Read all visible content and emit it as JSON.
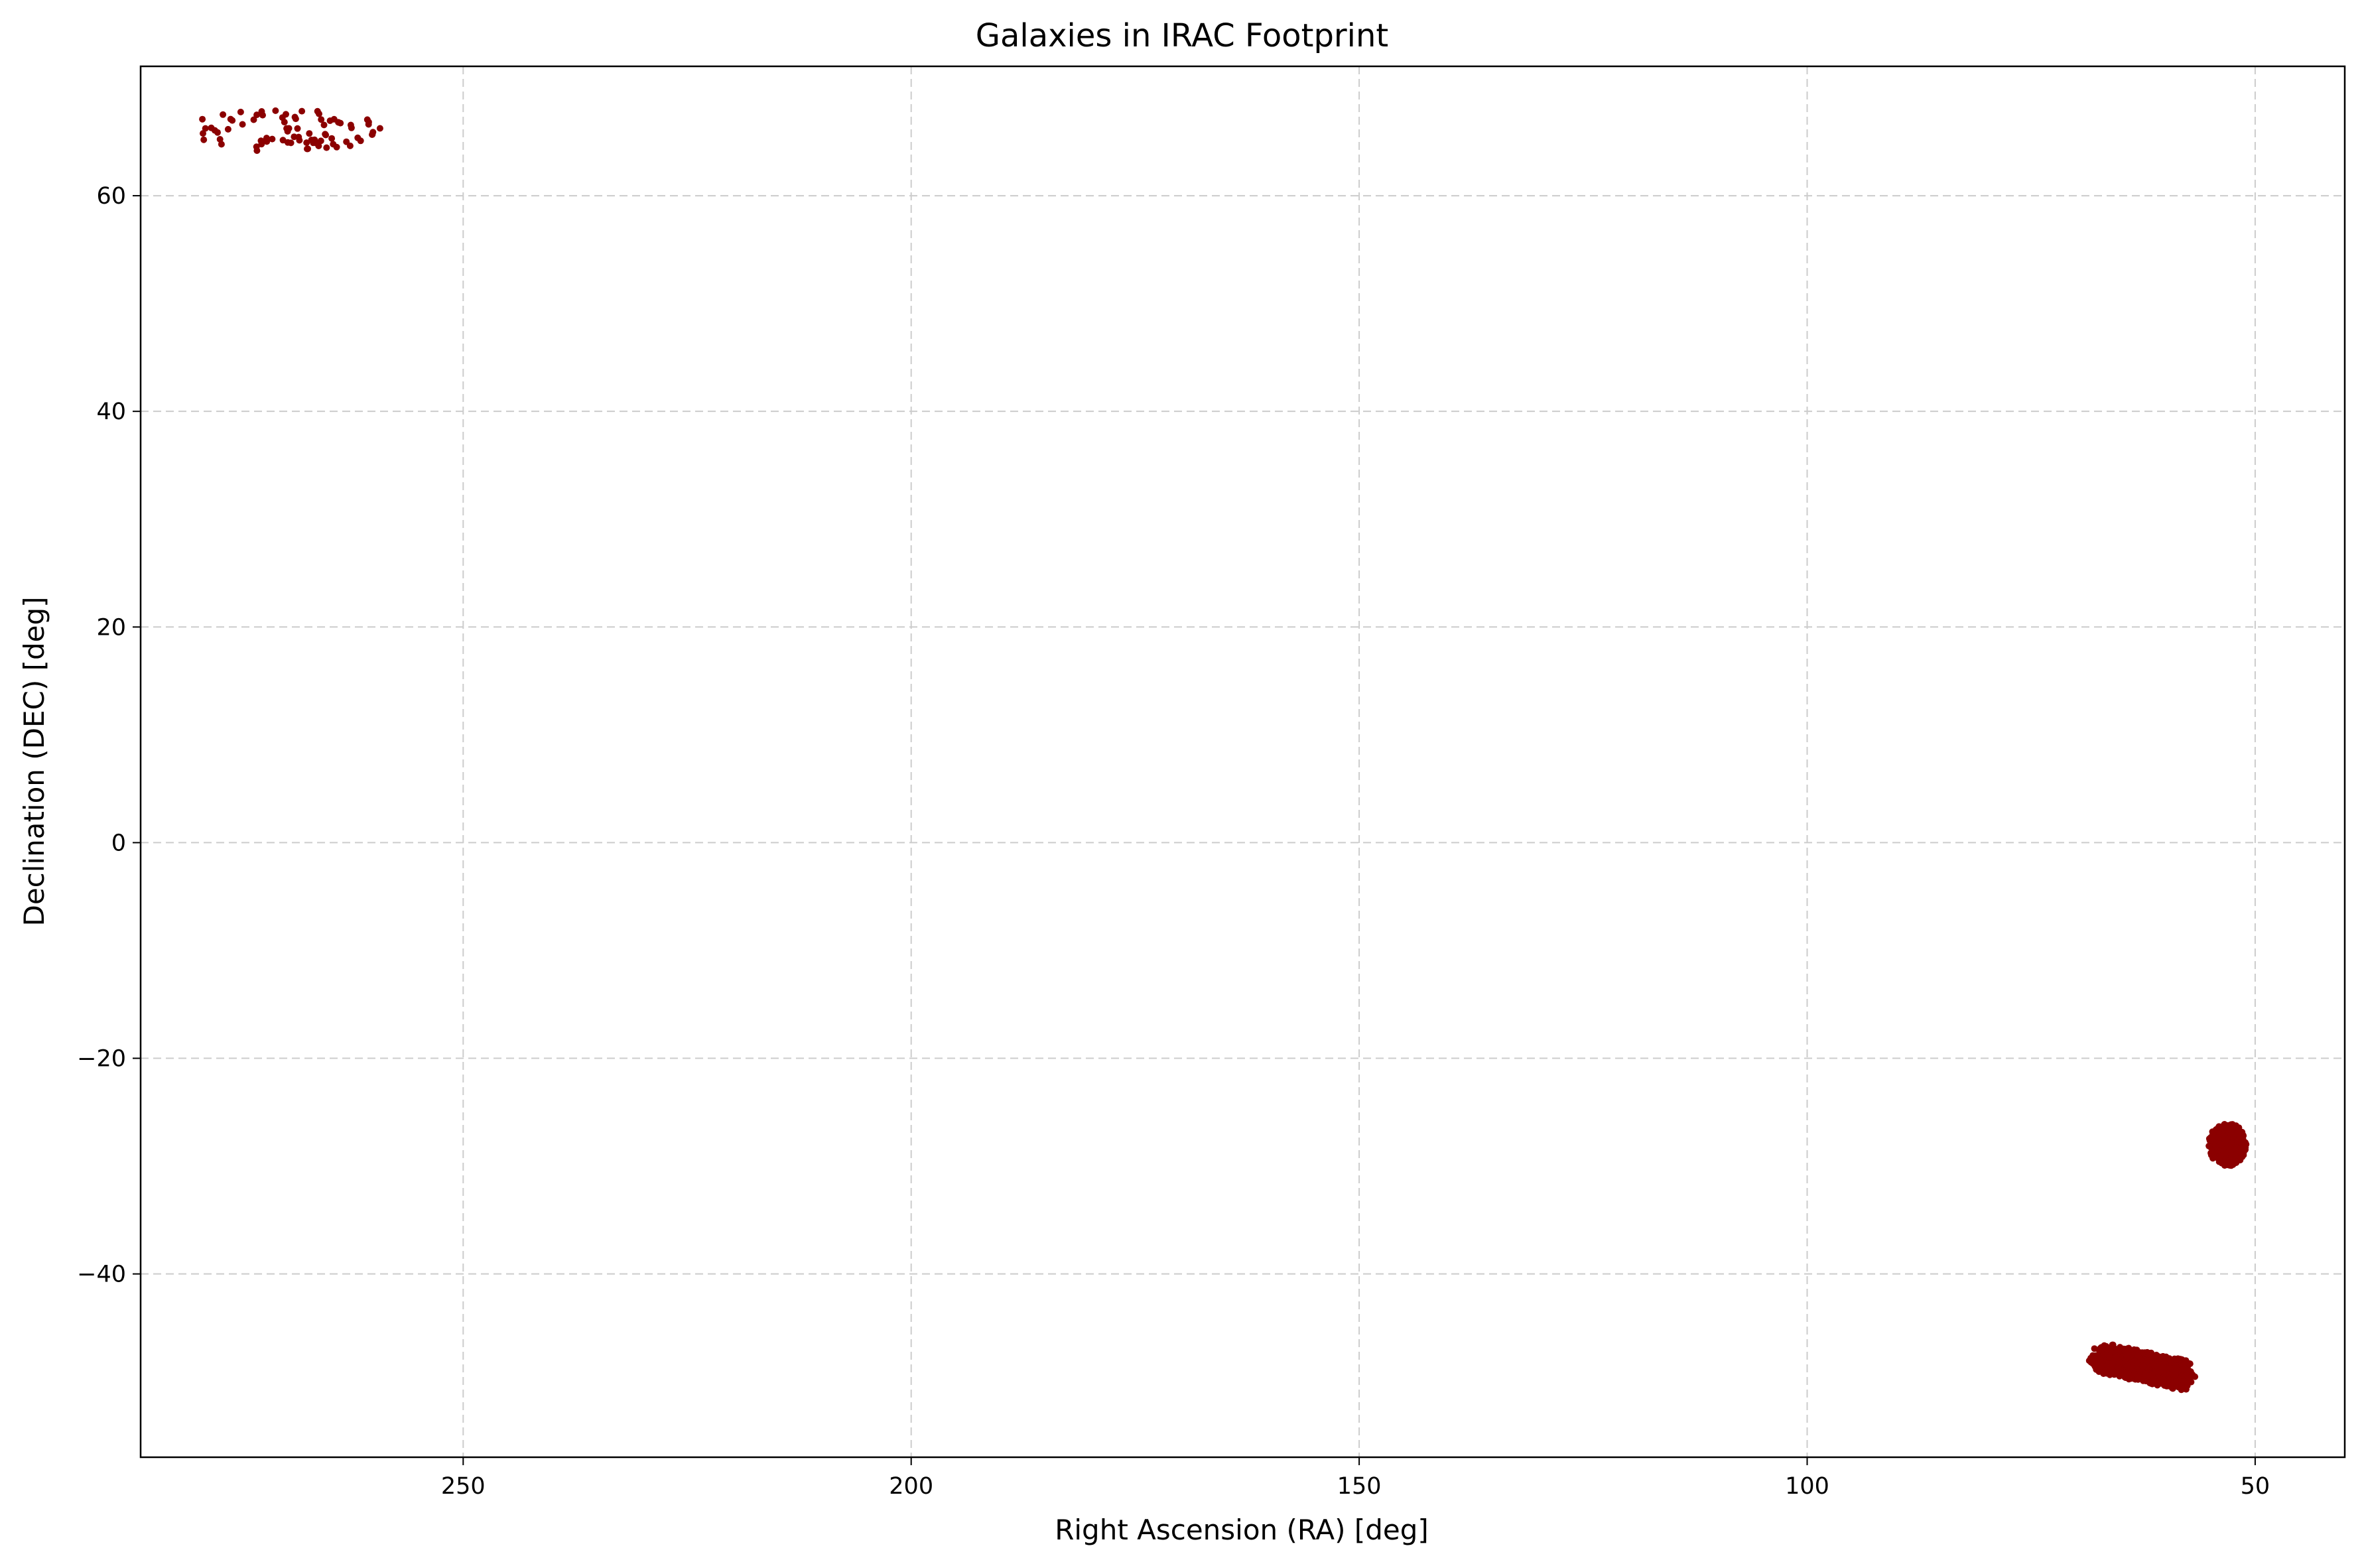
{
  "chart_data": {
    "type": "scatter",
    "title": "Galaxies in IRAC Footprint",
    "xlabel": "Right Ascension (RA) [deg]",
    "ylabel": "Declination (DEC) [deg]",
    "xlim": [
      286,
      40
    ],
    "ylim": [
      -57,
      72
    ],
    "x_inverted": true,
    "xticks": [
      250,
      200,
      150,
      100,
      50
    ],
    "yticks": [
      60,
      40,
      20,
      0,
      -20,
      -40
    ],
    "xtick_labels": [
      "250",
      "200",
      "150",
      "100",
      "50"
    ],
    "ytick_labels": [
      "60",
      "40",
      "20",
      "0",
      "−20",
      "−40"
    ],
    "grid": true,
    "marker_color": "#8b0000",
    "grid_color": "#cccccc",
    "clusters": [
      {
        "ra_center": 270.0,
        "dec_center": 66.1,
        "ra_halfwidth": 11.0,
        "dec_halfwidth": 2.0,
        "count": 80,
        "distribution": "sparse ellipse"
      },
      {
        "ra_center": 53.1,
        "dec_center": -28.0,
        "ra_halfwidth": 2.1,
        "dec_halfwidth": 2.0,
        "count": 350,
        "distribution": "dense disc"
      },
      {
        "ra_center": 61.5,
        "dec_center": -48.5,
        "ra_halfwidth": 7.5,
        "dec_halfwidth": 1.9,
        "count": 1400,
        "distribution": "dense elongated",
        "ra_start": 67.0,
        "dec_start": -47.8,
        "ra_end": 58.0,
        "dec_end": -49.4
      }
    ]
  }
}
